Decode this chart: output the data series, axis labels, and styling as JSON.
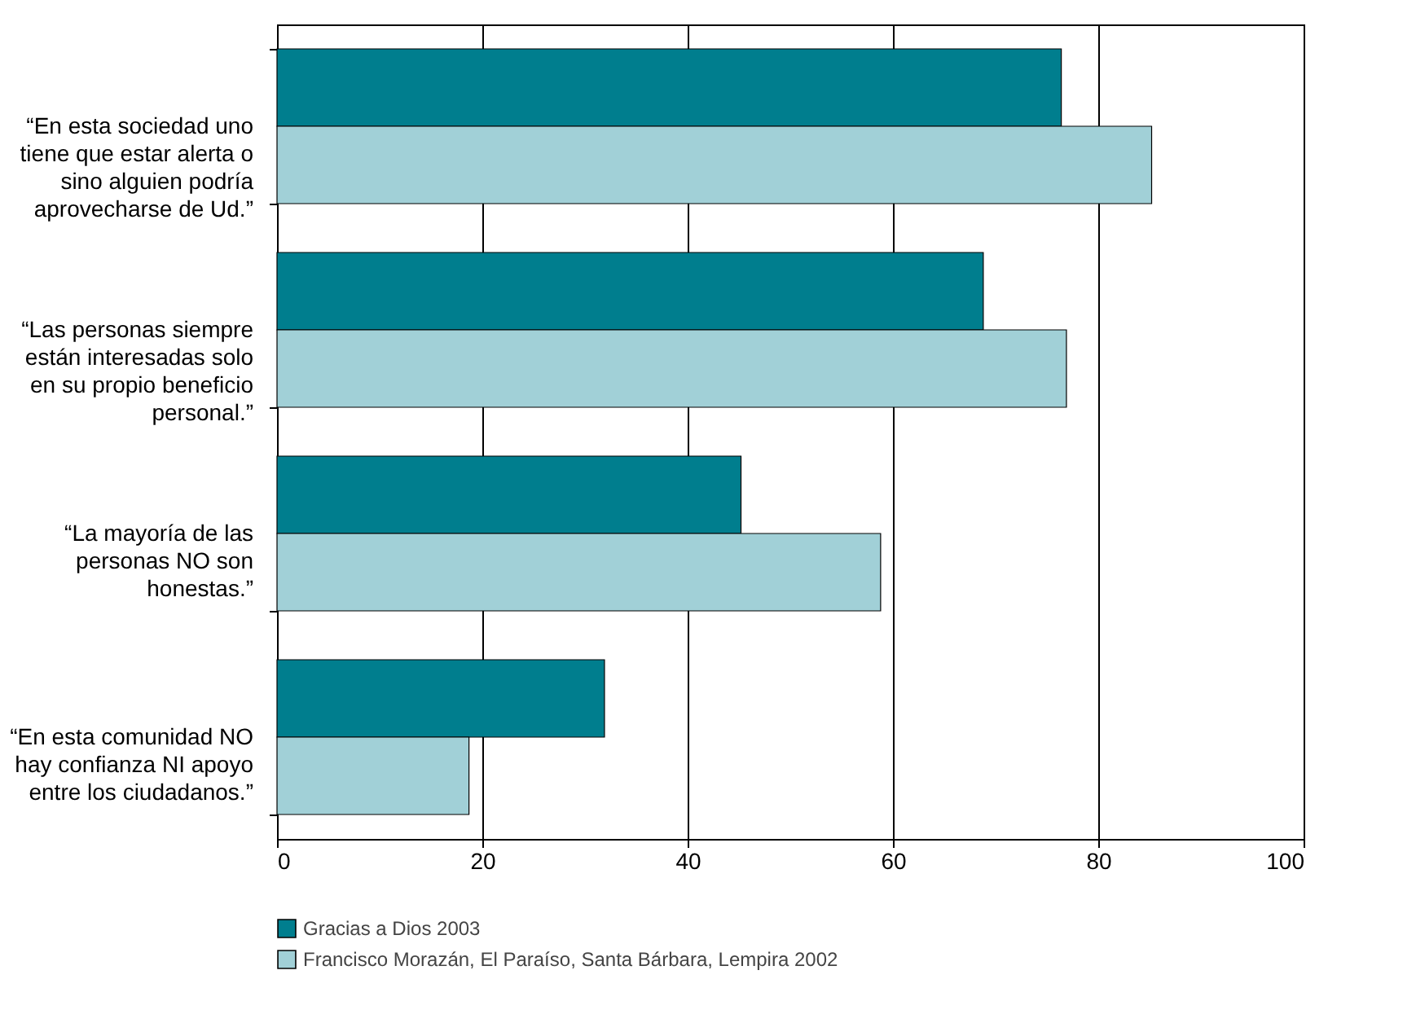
{
  "chart_data": {
    "type": "bar",
    "orientation": "horizontal",
    "categories": [
      "“En esta sociedad uno\ntiene que estar alerta o\nsino alguien podría\naprovecharse de Ud.”",
      "“Las personas siempre\nestán interesadas solo\nen su propio beneficio\npersonal.”",
      "“La mayoría de las\npersonas NO son\nhonestas.”",
      "“En esta comunidad NO\nhay confianza NI apoyo\nentre los ciudadanos.”"
    ],
    "series": [
      {
        "name": "Gracias a Dios 2003",
        "color": "#007e8e",
        "values": [
          76.4,
          68.8,
          45.2,
          31.9
        ]
      },
      {
        "name": "Francisco Morazán, El Paraíso, Santa Bárbara, Lempira 2002",
        "color": "#a1d0d7",
        "values": [
          85.2,
          76.9,
          58.8,
          18.7
        ]
      }
    ],
    "xlim": [
      0,
      100
    ],
    "xticks": [
      0,
      20,
      40,
      60,
      80,
      100
    ],
    "grid": "x",
    "legend": "bottom"
  }
}
